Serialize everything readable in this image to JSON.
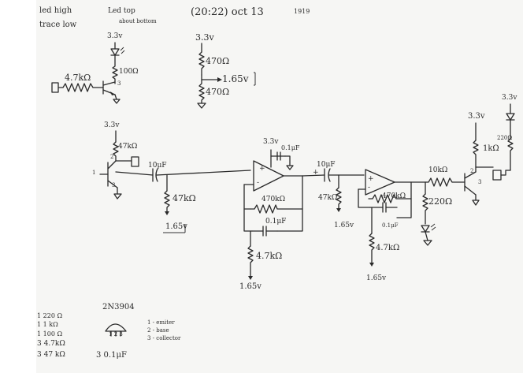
{
  "header": {
    "left_note_1": "led high",
    "left_note_2": "trace low",
    "mid_note_1": "Led top",
    "mid_note_2": "about bottom",
    "timestamp": "(20:22) oct 13",
    "mark": "1919"
  },
  "driver_circuit": {
    "supply": "3.3v",
    "base_resistor": "4.7kΩ",
    "led_resistor": "100Ω",
    "pin": "3"
  },
  "divider": {
    "supply": "3.3v",
    "r_top": "470Ω",
    "r_bottom": "470Ω",
    "output": "1.65v"
  },
  "mic_stage": {
    "supply": "3.3v",
    "pullup": "47kΩ",
    "cap": "10μF",
    "bias_res": "47kΩ",
    "bias_v": "1.65v",
    "pin_1": "1",
    "pin_2": "2",
    "pin_3": "3"
  },
  "amp_stage_1": {
    "supply": "3.3v",
    "decoupling_cap": "0.1μF",
    "feedback_res": "470kΩ",
    "feedback_cap": "0.1μF",
    "ground_res": "4.7kΩ",
    "ref_v": "1.65v",
    "plus": "+",
    "minus": "-"
  },
  "amp_stage_2": {
    "coupling_cap": "10μF",
    "bias_res": "47kΩ",
    "bias_v": "1.65v",
    "feedback_res": "470kΩ",
    "feedback_cap": "0.1μF",
    "ground_res": "4.7kΩ",
    "ref_v": "1.65v",
    "plus": "+",
    "minus": "-"
  },
  "output_stage": {
    "supply": "3.3v",
    "supply_right": "3.3v",
    "base_res": "10kΩ",
    "pullup": "1kΩ",
    "emitter_res": "220Ω",
    "side_res": "220Ω",
    "pin_2": "2",
    "pin_3": "3"
  },
  "parts_list": [
    "1  220 Ω",
    "1  1 kΩ",
    "1  100 Ω",
    "3  4.7kΩ",
    "3  47 kΩ",
    "3  0.1μF"
  ],
  "transistor_note": {
    "part": "2N3904",
    "pins": "1   2   3",
    "pin_1": "1 - emiter",
    "pin_2": "2 - base",
    "pin_3": "3 - collector"
  },
  "colors": {
    "paper": "#f6f6f4",
    "ink": "#2a2a2a"
  }
}
